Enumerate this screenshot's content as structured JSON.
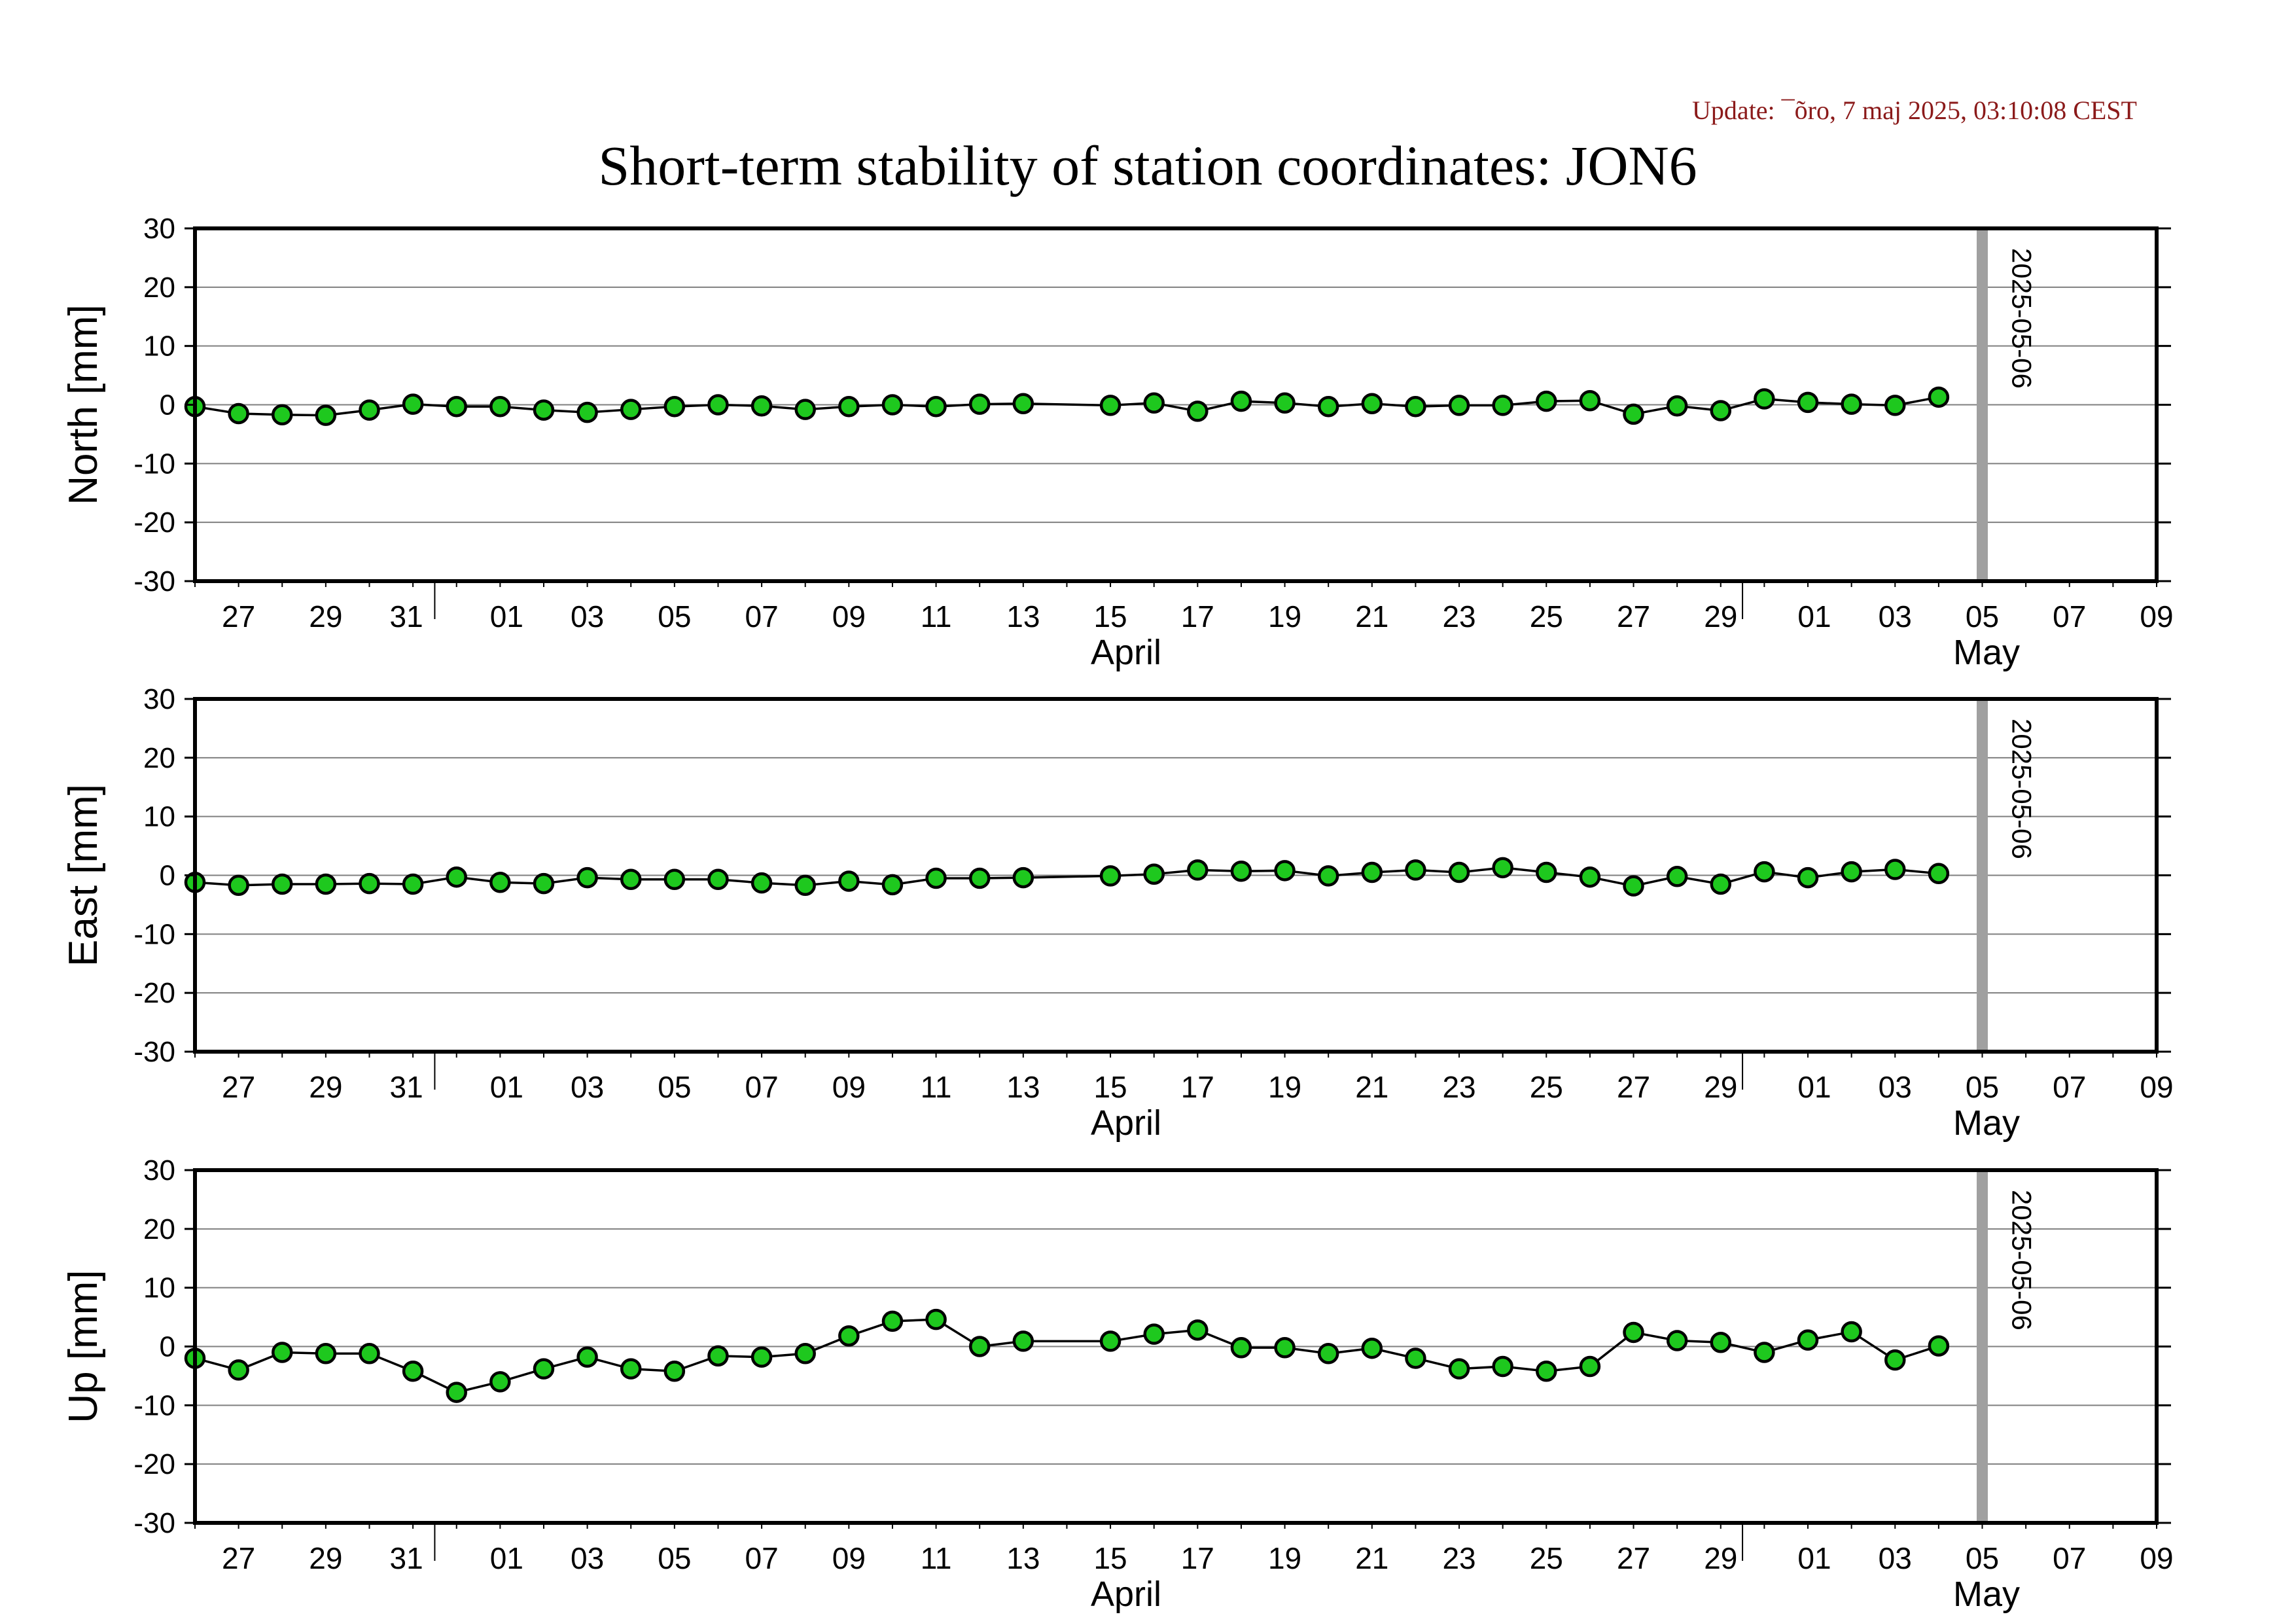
{
  "update_text": "Update: ¯õro, 7 maj 2025, 03:10:08 CEST",
  "title": "Short-term stability of station coordinates: JON6",
  "colors": {
    "update": "#8b1a1a",
    "marker_fill": "#1ec81e",
    "marker_stroke": "#000000",
    "line": "#000000",
    "grid": "#7f7f7f",
    "vline": "#a0a0a0",
    "frame": "#000000"
  },
  "chart_data": [
    {
      "type": "line",
      "ylabel": "North [mm]",
      "ylim": [
        -30,
        30
      ],
      "yticks": [
        -30,
        -20,
        -10,
        0,
        10,
        20,
        30
      ],
      "xlim": [
        "2025-03-26",
        "2025-05-10"
      ],
      "grid": "horizontal",
      "x_tick_labels": [
        "27",
        "29",
        "31",
        "01",
        "03",
        "05",
        "07",
        "09",
        "11",
        "13",
        "15",
        "17",
        "19",
        "21",
        "23",
        "25",
        "27",
        "29",
        "01",
        "03",
        "05",
        "07",
        "09"
      ],
      "month_labels": [
        "April",
        "May"
      ],
      "marker_line": {
        "date": "2025-05-06",
        "label": "2025-05-06"
      },
      "series": [
        {
          "x": [
            "2025-03-26",
            "2025-03-27",
            "2025-03-28",
            "2025-03-29",
            "2025-03-30",
            "2025-03-31",
            "2025-04-01",
            "2025-04-02",
            "2025-04-03",
            "2025-04-04",
            "2025-04-05",
            "2025-04-06",
            "2025-04-07",
            "2025-04-08",
            "2025-04-09",
            "2025-04-10",
            "2025-04-11",
            "2025-04-12",
            "2025-04-13",
            "2025-04-14",
            "2025-04-16",
            "2025-04-17",
            "2025-04-18",
            "2025-04-19",
            "2025-04-20",
            "2025-04-21",
            "2025-04-22",
            "2025-04-23",
            "2025-04-24",
            "2025-04-25",
            "2025-04-26",
            "2025-04-27",
            "2025-04-28",
            "2025-04-29",
            "2025-04-30",
            "2025-05-01",
            "2025-05-02",
            "2025-05-03",
            "2025-05-04",
            "2025-05-05"
          ],
          "values": [
            -0.3,
            -1.5,
            -1.7,
            -1.8,
            -0.9,
            0.1,
            -0.3,
            -0.3,
            -0.9,
            -1.3,
            -0.8,
            -0.3,
            0.0,
            -0.2,
            -0.8,
            -0.3,
            0.0,
            -0.3,
            0.1,
            0.2,
            -0.1,
            0.3,
            -1.1,
            0.6,
            0.3,
            -0.3,
            0.2,
            -0.3,
            -0.1,
            -0.1,
            0.6,
            0.7,
            -1.6,
            -0.2,
            -1.0,
            1.0,
            0.4,
            0.1,
            -0.1,
            1.3
          ]
        }
      ]
    },
    {
      "type": "line",
      "ylabel": "East [mm]",
      "ylim": [
        -30,
        30
      ],
      "yticks": [
        -30,
        -20,
        -10,
        0,
        10,
        20,
        30
      ],
      "xlim": [
        "2025-03-26",
        "2025-05-10"
      ],
      "grid": "horizontal",
      "x_tick_labels": [
        "27",
        "29",
        "31",
        "01",
        "03",
        "05",
        "07",
        "09",
        "11",
        "13",
        "15",
        "17",
        "19",
        "21",
        "23",
        "25",
        "27",
        "29",
        "01",
        "03",
        "05",
        "07",
        "09"
      ],
      "month_labels": [
        "April",
        "May"
      ],
      "marker_line": {
        "date": "2025-05-06",
        "label": "2025-05-06"
      },
      "series": [
        {
          "x": [
            "2025-03-26",
            "2025-03-27",
            "2025-03-28",
            "2025-03-29",
            "2025-03-30",
            "2025-03-31",
            "2025-04-01",
            "2025-04-02",
            "2025-04-03",
            "2025-04-04",
            "2025-04-05",
            "2025-04-06",
            "2025-04-07",
            "2025-04-08",
            "2025-04-09",
            "2025-04-10",
            "2025-04-11",
            "2025-04-12",
            "2025-04-13",
            "2025-04-14",
            "2025-04-16",
            "2025-04-17",
            "2025-04-18",
            "2025-04-19",
            "2025-04-20",
            "2025-04-21",
            "2025-04-22",
            "2025-04-23",
            "2025-04-24",
            "2025-04-25",
            "2025-04-26",
            "2025-04-27",
            "2025-04-28",
            "2025-04-29",
            "2025-04-30",
            "2025-05-01",
            "2025-05-02",
            "2025-05-03",
            "2025-05-04",
            "2025-05-05"
          ],
          "values": [
            -1.2,
            -1.7,
            -1.5,
            -1.5,
            -1.4,
            -1.5,
            -0.3,
            -1.2,
            -1.4,
            -0.4,
            -0.7,
            -0.7,
            -0.7,
            -1.3,
            -1.7,
            -1.0,
            -1.6,
            -0.5,
            -0.5,
            -0.4,
            -0.1,
            0.2,
            0.9,
            0.7,
            0.8,
            -0.1,
            0.5,
            0.9,
            0.5,
            1.3,
            0.5,
            -0.3,
            -1.8,
            -0.2,
            -1.5,
            0.6,
            -0.4,
            0.6,
            1.0,
            0.3
          ]
        }
      ]
    },
    {
      "type": "line",
      "ylabel": "Up [mm]",
      "ylim": [
        -30,
        30
      ],
      "yticks": [
        -30,
        -20,
        -10,
        0,
        10,
        20,
        30
      ],
      "xlim": [
        "2025-03-26",
        "2025-05-10"
      ],
      "grid": "horizontal",
      "x_tick_labels": [
        "27",
        "29",
        "31",
        "01",
        "03",
        "05",
        "07",
        "09",
        "11",
        "13",
        "15",
        "17",
        "19",
        "21",
        "23",
        "25",
        "27",
        "29",
        "01",
        "03",
        "05",
        "07",
        "09"
      ],
      "month_labels": [
        "April",
        "May"
      ],
      "marker_line": {
        "date": "2025-05-06",
        "label": "2025-05-06"
      },
      "series": [
        {
          "x": [
            "2025-03-26",
            "2025-03-27",
            "2025-03-28",
            "2025-03-29",
            "2025-03-30",
            "2025-03-31",
            "2025-04-01",
            "2025-04-02",
            "2025-04-03",
            "2025-04-04",
            "2025-04-05",
            "2025-04-06",
            "2025-04-07",
            "2025-04-08",
            "2025-04-09",
            "2025-04-10",
            "2025-04-11",
            "2025-04-12",
            "2025-04-13",
            "2025-04-14",
            "2025-04-16",
            "2025-04-17",
            "2025-04-18",
            "2025-04-19",
            "2025-04-20",
            "2025-04-21",
            "2025-04-22",
            "2025-04-23",
            "2025-04-24",
            "2025-04-25",
            "2025-04-26",
            "2025-04-27",
            "2025-04-28",
            "2025-04-29",
            "2025-04-30",
            "2025-05-01",
            "2025-05-02",
            "2025-05-03",
            "2025-05-04",
            "2025-05-05"
          ],
          "values": [
            -2.0,
            -4.0,
            -1.0,
            -1.2,
            -1.2,
            -4.2,
            -7.8,
            -6.0,
            -3.8,
            -1.8,
            -3.8,
            -4.2,
            -1.6,
            -1.8,
            -1.2,
            1.8,
            4.3,
            4.6,
            0.0,
            0.9,
            0.9,
            2.1,
            2.8,
            -0.2,
            -0.2,
            -1.2,
            -0.3,
            -2.0,
            -3.8,
            -3.4,
            -4.2,
            -3.4,
            2.4,
            1.0,
            0.7,
            -1.0,
            1.1,
            2.5,
            -2.3,
            0.1
          ]
        }
      ]
    }
  ]
}
